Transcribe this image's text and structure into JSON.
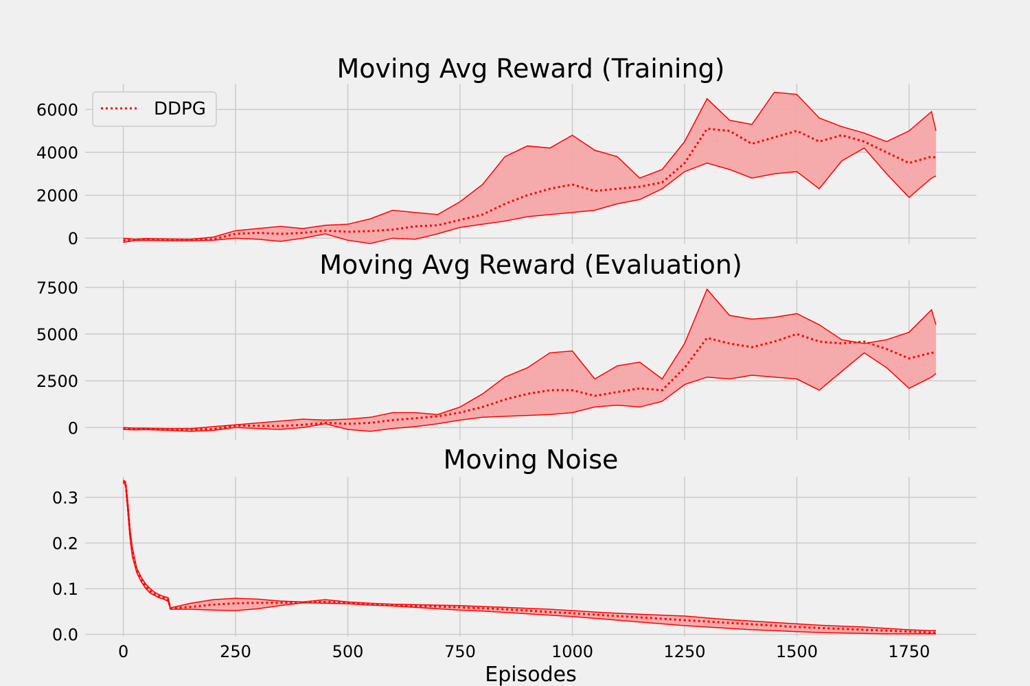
{
  "chart_data": [
    {
      "type": "area",
      "title": "Moving Avg Reward (Training)",
      "xlim": [
        -85,
        1900
      ],
      "ylim": [
        -250,
        7200
      ],
      "xticks": [
        0,
        250,
        500,
        750,
        1000,
        1250,
        1500,
        1750
      ],
      "yticks": [
        0,
        2000,
        4000,
        6000
      ],
      "grid": true,
      "legend": {
        "placement": "top-left",
        "entries": [
          "DDPG"
        ]
      },
      "series": [
        {
          "name": "DDPG",
          "x": [
            0,
            25,
            50,
            100,
            150,
            200,
            250,
            300,
            350,
            400,
            450,
            500,
            550,
            600,
            650,
            700,
            750,
            800,
            850,
            900,
            950,
            1000,
            1050,
            1100,
            1150,
            1200,
            1250,
            1300,
            1350,
            1400,
            1450,
            1500,
            1550,
            1600,
            1650,
            1700,
            1750,
            1800,
            1810
          ],
          "mean": [
            -100,
            -80,
            -60,
            -70,
            -80,
            -50,
            200,
            250,
            200,
            250,
            350,
            300,
            330,
            400,
            550,
            600,
            850,
            1100,
            1600,
            2000,
            2300,
            2500,
            2200,
            2300,
            2400,
            2600,
            3500,
            5100,
            5000,
            4400,
            4700,
            5000,
            4500,
            4800,
            4500,
            4000,
            3500,
            3800,
            3750
          ],
          "upper": [
            0,
            -50,
            -20,
            -40,
            -50,
            50,
            350,
            450,
            550,
            450,
            600,
            650,
            900,
            1300,
            1200,
            1100,
            1700,
            2500,
            3800,
            4300,
            4200,
            4800,
            4100,
            3800,
            2800,
            3200,
            4500,
            6500,
            5500,
            5300,
            6800,
            6700,
            5600,
            5200,
            4900,
            4500,
            5000,
            5900,
            5000
          ],
          "lower": [
            -200,
            -110,
            -100,
            -120,
            -120,
            -100,
            0,
            -50,
            -150,
            0,
            200,
            -100,
            -250,
            0,
            -50,
            200,
            500,
            650,
            800,
            1000,
            1100,
            1200,
            1300,
            1600,
            1800,
            2300,
            3100,
            3500,
            3200,
            2800,
            3000,
            3100,
            2300,
            3600,
            4200,
            3000,
            1900,
            2800,
            2900
          ]
        }
      ]
    },
    {
      "type": "area",
      "title": "Moving Avg Reward (Evaluation)",
      "xlim": [
        -85,
        1900
      ],
      "ylim": [
        -650,
        7900
      ],
      "xticks": [
        0,
        250,
        500,
        750,
        1000,
        1250,
        1500,
        1750
      ],
      "yticks": [
        0,
        2500,
        5000,
        7500
      ],
      "grid": true,
      "series": [
        {
          "name": "DDPG",
          "x": [
            0,
            25,
            50,
            100,
            150,
            200,
            250,
            300,
            350,
            400,
            450,
            500,
            550,
            600,
            650,
            700,
            750,
            800,
            850,
            900,
            950,
            1000,
            1050,
            1100,
            1150,
            1200,
            1250,
            1300,
            1350,
            1400,
            1450,
            1500,
            1550,
            1600,
            1650,
            1700,
            1750,
            1800,
            1810
          ],
          "mean": [
            -50,
            -80,
            -70,
            -90,
            -100,
            -80,
            100,
            100,
            80,
            150,
            250,
            200,
            250,
            400,
            500,
            600,
            800,
            1100,
            1500,
            1800,
            2000,
            2000,
            1700,
            1900,
            2100,
            2000,
            3200,
            4800,
            4500,
            4300,
            4600,
            5000,
            4600,
            4500,
            4600,
            4200,
            3700,
            4000,
            4000
          ],
          "upper": [
            0,
            -30,
            -30,
            -60,
            -60,
            50,
            150,
            250,
            350,
            450,
            400,
            450,
            550,
            800,
            800,
            700,
            1100,
            1800,
            2700,
            3200,
            4000,
            4100,
            2600,
            3300,
            3500,
            2600,
            4500,
            7400,
            6000,
            5800,
            5900,
            6100,
            5500,
            4700,
            4500,
            4700,
            5100,
            6300,
            5500
          ],
          "lower": [
            -100,
            -120,
            -110,
            -150,
            -200,
            -150,
            0,
            -50,
            -100,
            0,
            200,
            -100,
            -200,
            -50,
            50,
            200,
            400,
            550,
            600,
            650,
            700,
            800,
            1100,
            1200,
            1100,
            1400,
            2300,
            2700,
            2600,
            2800,
            2700,
            2600,
            2000,
            3000,
            4000,
            3200,
            2100,
            2700,
            2900
          ]
        }
      ]
    },
    {
      "type": "area",
      "title": "Moving Noise",
      "xlabel": "Episodes",
      "xlim": [
        -85,
        1900
      ],
      "ylim": [
        -0.005,
        0.345
      ],
      "xticks": [
        0,
        250,
        500,
        750,
        1000,
        1250,
        1500,
        1750
      ],
      "yticks": [
        0.0,
        0.1,
        0.2,
        0.3
      ],
      "grid": true,
      "series": [
        {
          "name": "DDPG",
          "x": [
            0,
            5,
            10,
            15,
            20,
            30,
            40,
            50,
            60,
            70,
            80,
            90,
            100,
            105,
            150,
            200,
            250,
            300,
            350,
            400,
            450,
            500,
            550,
            600,
            650,
            700,
            750,
            800,
            850,
            900,
            950,
            1000,
            1050,
            1100,
            1150,
            1200,
            1250,
            1300,
            1350,
            1400,
            1450,
            1500,
            1550,
            1600,
            1650,
            1700,
            1750,
            1800,
            1810
          ],
          "mean": [
            0.335,
            0.33,
            0.28,
            0.22,
            0.18,
            0.14,
            0.12,
            0.105,
            0.095,
            0.088,
            0.083,
            0.08,
            0.075,
            0.057,
            0.06,
            0.065,
            0.068,
            0.069,
            0.069,
            0.07,
            0.071,
            0.069,
            0.066,
            0.064,
            0.062,
            0.061,
            0.059,
            0.057,
            0.055,
            0.052,
            0.049,
            0.046,
            0.043,
            0.04,
            0.037,
            0.034,
            0.031,
            0.028,
            0.025,
            0.022,
            0.019,
            0.016,
            0.014,
            0.012,
            0.01,
            0.008,
            0.006,
            0.004,
            0.004
          ],
          "upper": [
            0.338,
            0.334,
            0.29,
            0.23,
            0.19,
            0.145,
            0.125,
            0.11,
            0.1,
            0.092,
            0.087,
            0.083,
            0.08,
            0.058,
            0.068,
            0.076,
            0.079,
            0.077,
            0.073,
            0.071,
            0.076,
            0.071,
            0.068,
            0.066,
            0.065,
            0.064,
            0.063,
            0.061,
            0.059,
            0.057,
            0.055,
            0.052,
            0.049,
            0.046,
            0.044,
            0.042,
            0.04,
            0.036,
            0.032,
            0.029,
            0.026,
            0.023,
            0.02,
            0.018,
            0.016,
            0.013,
            0.01,
            0.008,
            0.008
          ],
          "lower": [
            0.332,
            0.326,
            0.27,
            0.21,
            0.17,
            0.135,
            0.115,
            0.1,
            0.09,
            0.085,
            0.08,
            0.077,
            0.072,
            0.055,
            0.055,
            0.053,
            0.052,
            0.056,
            0.063,
            0.069,
            0.068,
            0.067,
            0.064,
            0.062,
            0.059,
            0.056,
            0.053,
            0.051,
            0.048,
            0.045,
            0.042,
            0.039,
            0.035,
            0.031,
            0.027,
            0.023,
            0.019,
            0.016,
            0.013,
            0.01,
            0.008,
            0.006,
            0.004,
            0.003,
            0.002,
            0.001,
            0.001,
            0.001,
            0.001
          ]
        }
      ]
    }
  ],
  "colors": {
    "background": "#f0f0f0",
    "grid": "#cbcbcb",
    "line": "#ff0000",
    "fill": "#f4a6a6"
  }
}
